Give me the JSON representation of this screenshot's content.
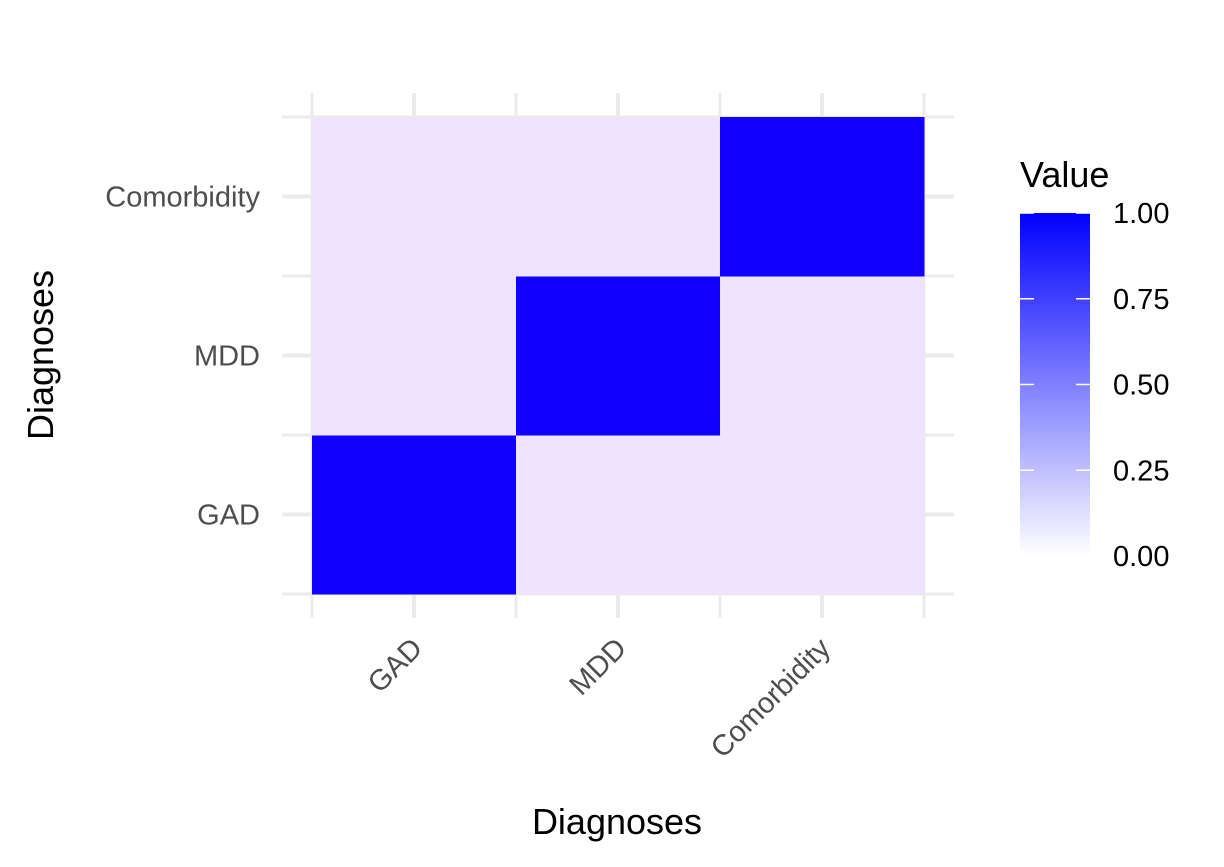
{
  "chart_data": {
    "type": "heatmap",
    "x_categories": [
      "GAD",
      "MDD",
      "Comorbidity"
    ],
    "y_categories": [
      "GAD",
      "MDD",
      "Comorbidity"
    ],
    "values": [
      [
        1,
        0,
        0
      ],
      [
        0,
        1,
        0
      ],
      [
        0,
        0,
        1
      ]
    ],
    "xlabel": "Diagnoses",
    "ylabel": "Diagnoses",
    "legend": {
      "title": "Value",
      "position": "right",
      "breaks": [
        0.0,
        0.25,
        0.5,
        0.75,
        1.0
      ],
      "labels": [
        "0.00",
        "0.25",
        "0.50",
        "0.75",
        "1.00"
      ],
      "low_color": "#FFFFFF",
      "high_color": "#0000FF"
    },
    "grid": true,
    "panel_grid_color": "#EBEBEB",
    "off_diagonal_color": "#EFE3FD",
    "diagonal_color": "#1100FE"
  }
}
